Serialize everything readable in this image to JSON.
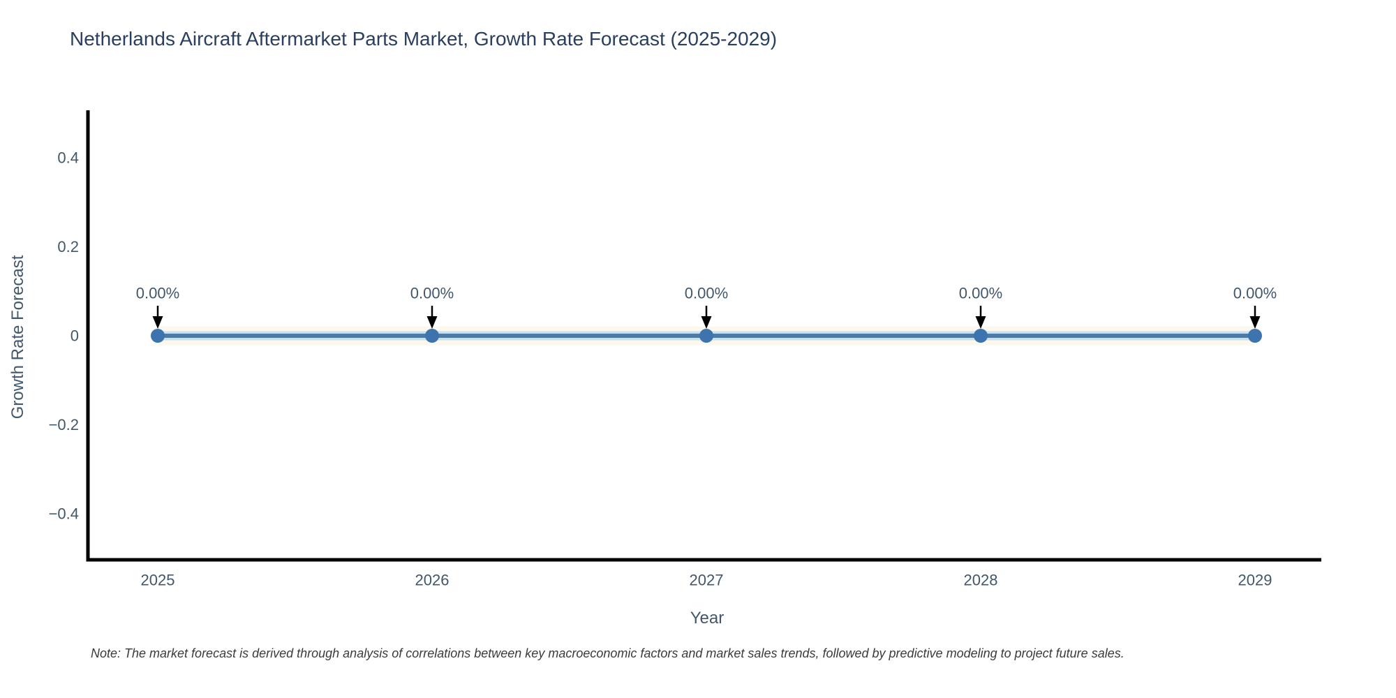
{
  "title": "Netherlands Aircraft Aftermarket Parts Market, Growth Rate Forecast (2025-2029)",
  "note": "Note: The market forecast is derived through analysis of correlations between key macroeconomic factors and market sales trends, followed by predictive modeling to project future sales.",
  "chart_data": {
    "type": "line",
    "title": "Netherlands Aircraft Aftermarket Parts Market, Growth Rate Forecast (2025-2029)",
    "xlabel": "Year",
    "ylabel": "Growth Rate Forecast",
    "x": [
      2025,
      2026,
      2027,
      2028,
      2029
    ],
    "xtick_labels": [
      "2025",
      "2026",
      "2027",
      "2028",
      "2029"
    ],
    "series": [
      {
        "name": "Growth Rate Forecast",
        "values": [
          0,
          0,
          0,
          0,
          0
        ]
      }
    ],
    "point_labels": [
      "0.00%",
      "0.00%",
      "0.00%",
      "0.00%",
      "0.00%"
    ],
    "yticks": [
      0.4,
      0.2,
      0,
      -0.2,
      -0.4
    ],
    "ytick_labels": [
      "0.4",
      "0.2",
      "0",
      "−0.2",
      "−0.4"
    ],
    "xlim": [
      2024.75,
      2029.25
    ],
    "ylim": [
      -0.5,
      0.5
    ],
    "grid": false,
    "legend": "none",
    "annotation_arrows": "down",
    "colors": {
      "line": "#4d7ba8",
      "line_glow": "#c8e1f1",
      "line_halo": "#fdf8ee",
      "marker": "#3e74ad",
      "arrow": "#000000",
      "spine": "#000000",
      "title_text": "#2a3f5f",
      "axis_text": "#42576b",
      "annotation_text": "#42576b",
      "note_text": "#3b3b3b"
    }
  }
}
